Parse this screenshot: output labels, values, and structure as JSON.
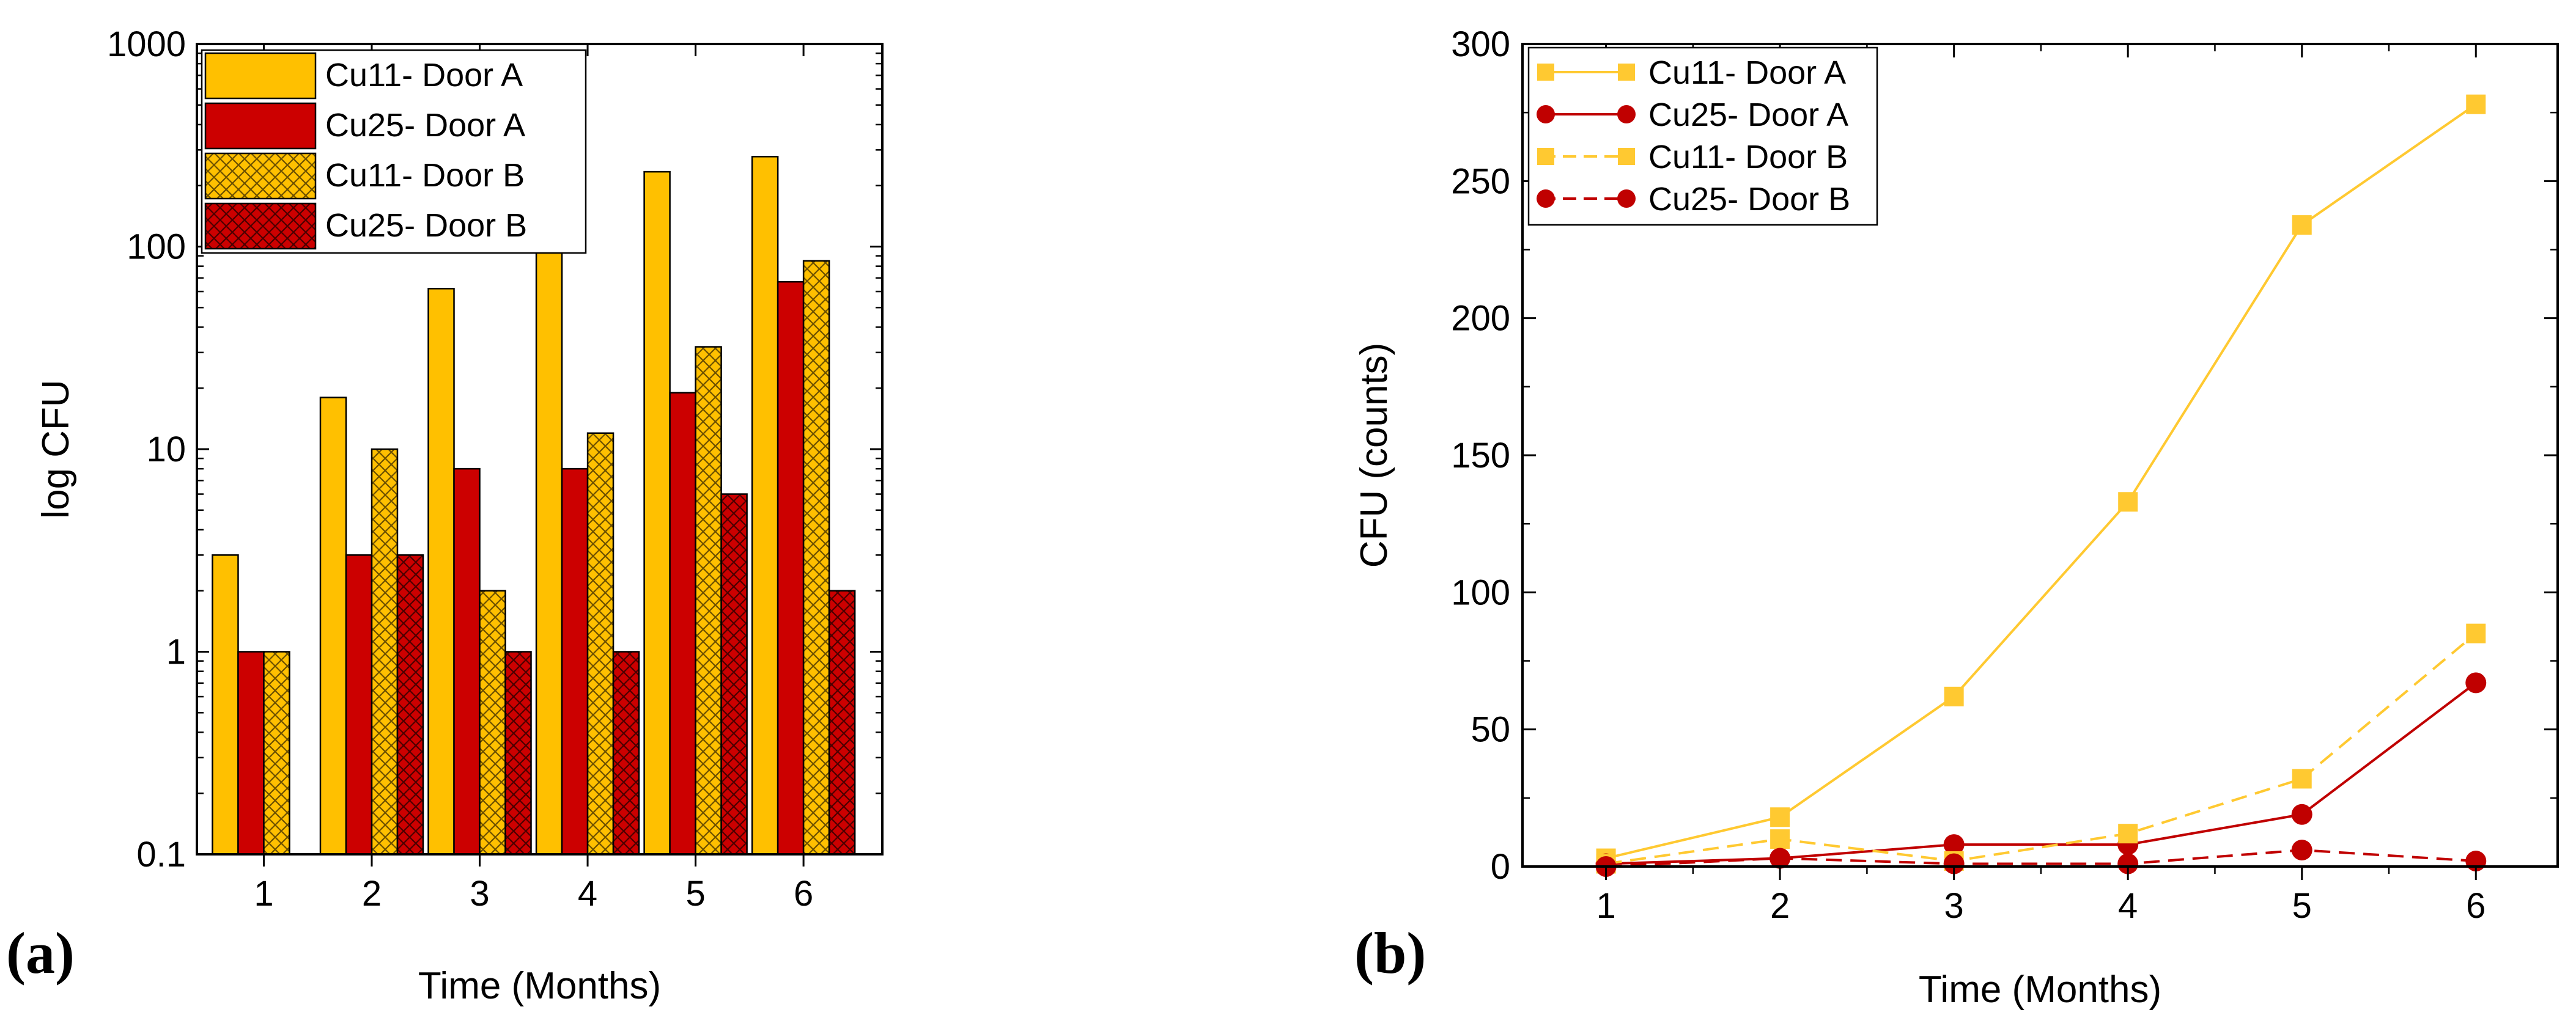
{
  "colors": {
    "yellow": "#FFC000",
    "yellow_line": "#FFC931",
    "red": "#CC0000",
    "red_line": "#C00000",
    "red_hatch": "#5a0000",
    "yellow_hatch": "#7a5a00"
  },
  "chart_data": [
    {
      "panel_label": "(a)",
      "type": "bar",
      "xlabel": "Time (Months)",
      "ylabel": "log CFU",
      "yscale": "log",
      "ylim": [
        0.1,
        1000
      ],
      "yticks": [
        "0.1",
        "1",
        "10",
        "100",
        "1000"
      ],
      "categories": [
        "1",
        "2",
        "3",
        "4",
        "5",
        "6"
      ],
      "legend_position": "top-left",
      "series": [
        {
          "name": "Cu11- Door A",
          "values": [
            3,
            18,
            62,
            133,
            234,
            278
          ],
          "color": "yellow",
          "hatched": false
        },
        {
          "name": "Cu25- Door A",
          "values": [
            1,
            3,
            8,
            8,
            19,
            67
          ],
          "color": "red",
          "hatched": false
        },
        {
          "name": "Cu11- Door B",
          "values": [
            1,
            10,
            2,
            12,
            32,
            85
          ],
          "color": "yellow",
          "hatched": true
        },
        {
          "name": "Cu25- Door B",
          "values": [
            0,
            3,
            1,
            1,
            6,
            2
          ],
          "color": "red",
          "hatched": true
        }
      ]
    },
    {
      "panel_label": "(b)",
      "type": "line",
      "xlabel": "Time (Months)",
      "ylabel": "CFU (counts)",
      "ylim": [
        0,
        300
      ],
      "yticks": [
        "0",
        "50",
        "100",
        "150",
        "200",
        "250",
        "300"
      ],
      "x": [
        "1",
        "2",
        "3",
        "4",
        "5",
        "6"
      ],
      "legend_position": "top-left",
      "series": [
        {
          "name": "Cu11- Door A",
          "values": [
            3,
            18,
            62,
            133,
            234,
            278
          ],
          "color": "yellow",
          "marker": "square",
          "dash": false
        },
        {
          "name": "Cu25- Door A",
          "values": [
            1,
            3,
            8,
            8,
            19,
            67
          ],
          "color": "red",
          "marker": "circle",
          "dash": false
        },
        {
          "name": "Cu11- Door B",
          "values": [
            1,
            10,
            2,
            12,
            32,
            85
          ],
          "color": "yellow",
          "marker": "square",
          "dash": true
        },
        {
          "name": "Cu25- Door B",
          "values": [
            0,
            3,
            1,
            1,
            6,
            2
          ],
          "color": "red",
          "marker": "circle",
          "dash": true
        }
      ]
    }
  ]
}
